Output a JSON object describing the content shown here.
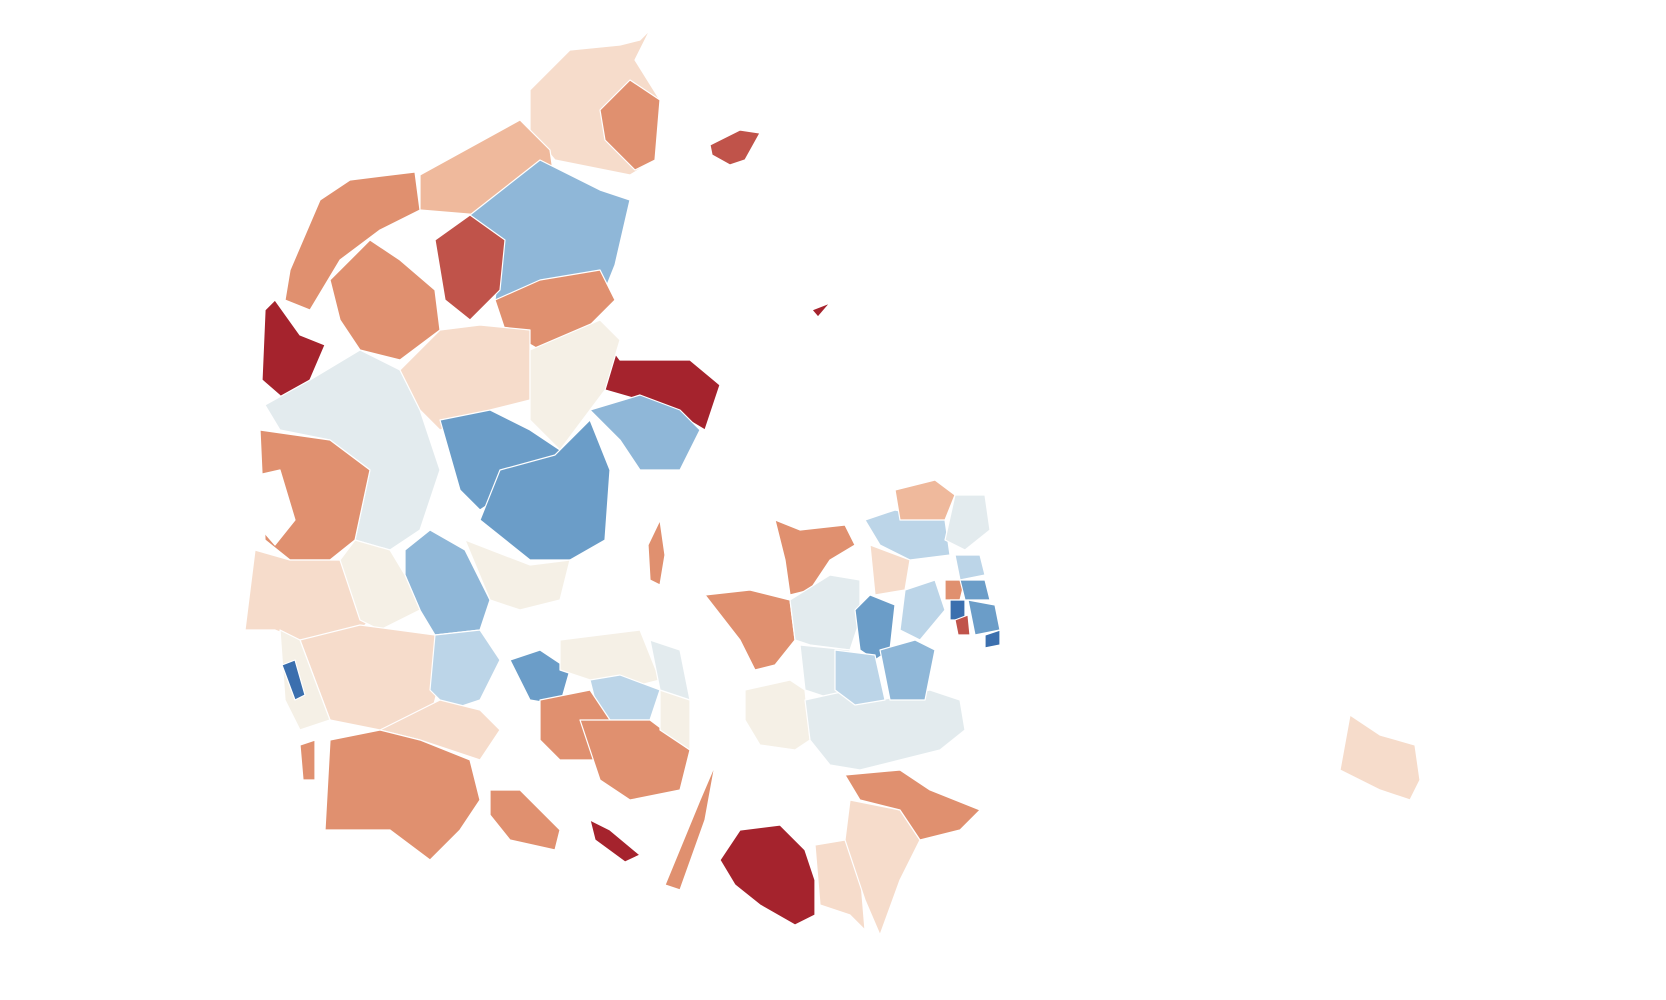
{
  "map": {
    "type": "choropleth",
    "background": "#ffffff",
    "border_color": "#ffffff",
    "color_scale": {
      "darkred": "#a5232d",
      "red": "#c0534a",
      "orange": "#e0906f",
      "lightorange": "#efb99c",
      "peach": "#f6dccb",
      "cream": "#f5f0e6",
      "gray": "#e3ebee",
      "lightblue": "#bcd5e8",
      "midblue": "#8fb7d8",
      "blue": "#6b9dc8",
      "darkblue": "#3b6fae"
    }
  }
}
